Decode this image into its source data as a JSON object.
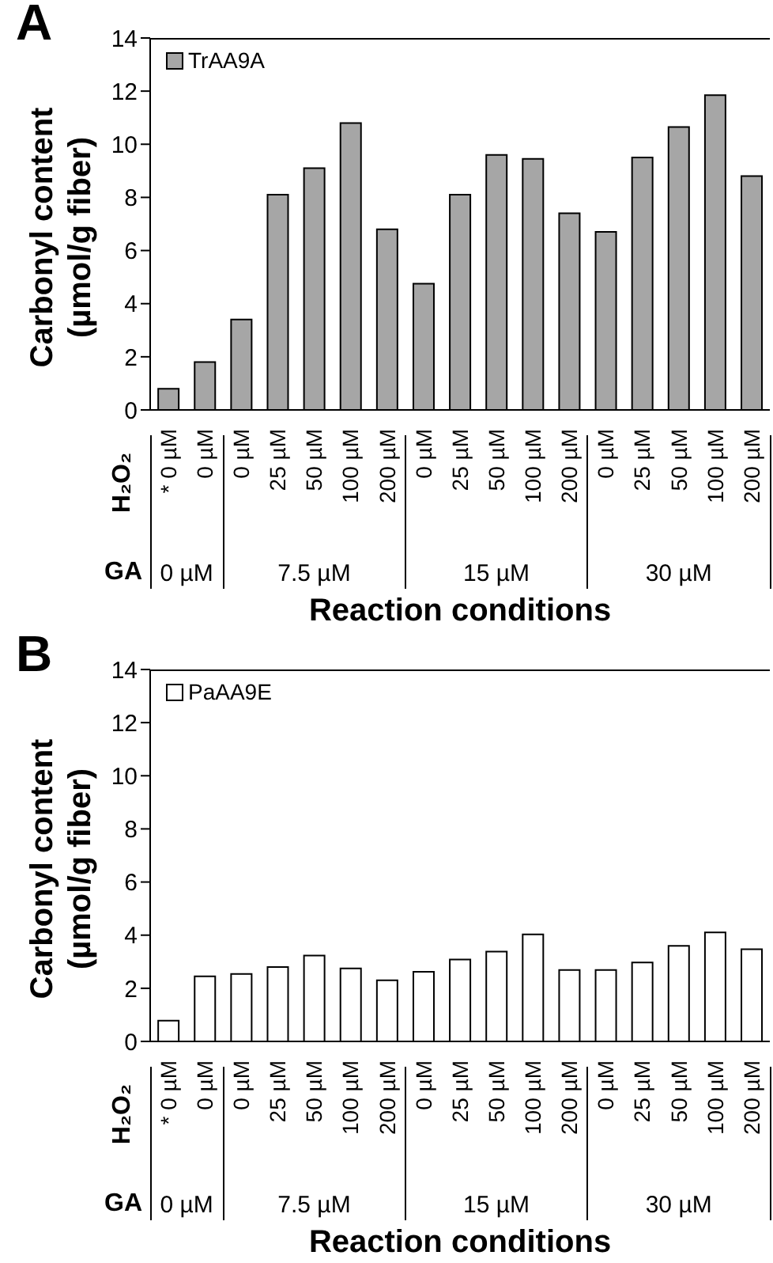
{
  "chart_data": [
    {
      "type": "bar",
      "title": "A",
      "xlabel": "Reaction conditions",
      "ylabel": "Carbonyl content (µmol/g fiber)",
      "categories": [
        "* 0 µM",
        "0 µM",
        "0 µM",
        "25 µM",
        "50 µM",
        "100 µM",
        "200 µM",
        "0 µM",
        "25 µM",
        "50 µM",
        "100 µM",
        "200 µM",
        "0 µM",
        "25 µM",
        "50 µM",
        "100 µM",
        "200 µM"
      ],
      "series": [
        {
          "name": "TrAA9A",
          "color": "#a6a6a6",
          "values": [
            0.8,
            1.8,
            3.4,
            8.1,
            9.1,
            10.8,
            6.8,
            4.75,
            8.1,
            9.6,
            9.45,
            7.4,
            6.7,
            9.5,
            10.65,
            11.85,
            8.8
          ]
        }
      ],
      "ylim": [
        0,
        14
      ],
      "yticks": [
        0,
        2,
        4,
        6,
        8,
        10,
        12,
        14
      ],
      "legend": "top left",
      "annotations": [
        "H₂O₂",
        "GA",
        "0 µM",
        "7.5 µM",
        "15 µM",
        "30 µM"
      ]
    },
    {
      "type": "bar",
      "title": "B",
      "xlabel": "Reaction conditions",
      "ylabel": "Carbonyl content (µmol/g fiber)",
      "categories": [
        "* 0 µM",
        "0 µM",
        "0 µM",
        "25 µM",
        "50 µM",
        "100 µM",
        "200 µM",
        "0 µM",
        "25 µM",
        "50 µM",
        "100 µM",
        "200 µM",
        "0 µM",
        "25 µM",
        "50 µM",
        "100 µM",
        "200 µM"
      ],
      "series": [
        {
          "name": "PaAA9E",
          "color": "#ffffff",
          "values": [
            0.78,
            2.45,
            2.54,
            2.8,
            3.23,
            2.75,
            2.3,
            2.62,
            3.08,
            3.38,
            4.03,
            2.69,
            2.69,
            2.97,
            3.6,
            4.1,
            3.47
          ]
        }
      ],
      "ylim": [
        0,
        14
      ],
      "yticks": [
        0,
        2,
        4,
        6,
        8,
        10,
        12,
        14
      ],
      "legend": "top left",
      "annotations": [
        "H₂O₂",
        "GA",
        "0 µM",
        "7.5 µM",
        "15 µM",
        "30 µM"
      ]
    }
  ]
}
